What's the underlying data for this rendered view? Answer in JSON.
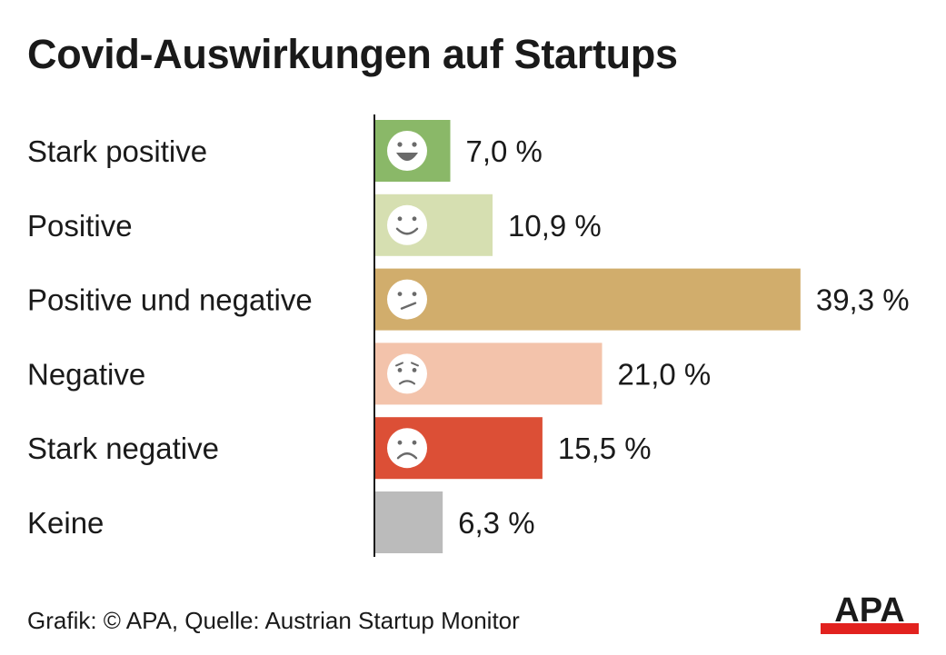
{
  "title": "Covid-Auswirkungen auf Startups",
  "footer": {
    "source": "Grafik: © APA, Quelle: Austrian Startup Monitor",
    "logo": "APA",
    "logo_colors": {
      "text": "#1a1a1a",
      "bar": "#e2221f"
    }
  },
  "chart_data": {
    "type": "bar",
    "orientation": "horizontal",
    "categories": [
      "Stark positive",
      "Positive",
      "Positive und negative",
      "Negative",
      "Stark negative",
      "Keine"
    ],
    "values": [
      7.0,
      10.9,
      39.3,
      21.0,
      15.5,
      6.3
    ],
    "value_labels": [
      "7,0 %",
      "10,9 %",
      "39,3 %",
      "21,0 %",
      "15,5 %",
      "6,3 %"
    ],
    "unit": "%",
    "colors": [
      "#8ab868",
      "#d6dfb1",
      "#d1ad6c",
      "#f3c3ab",
      "#dc4f36",
      "#bbbbbb"
    ],
    "icons": [
      "big-smile-face-icon",
      "smile-face-icon",
      "confused-face-icon",
      "worried-face-icon",
      "sad-face-icon",
      null
    ],
    "xlim": [
      0,
      40
    ],
    "grid": false,
    "legend": "none"
  }
}
